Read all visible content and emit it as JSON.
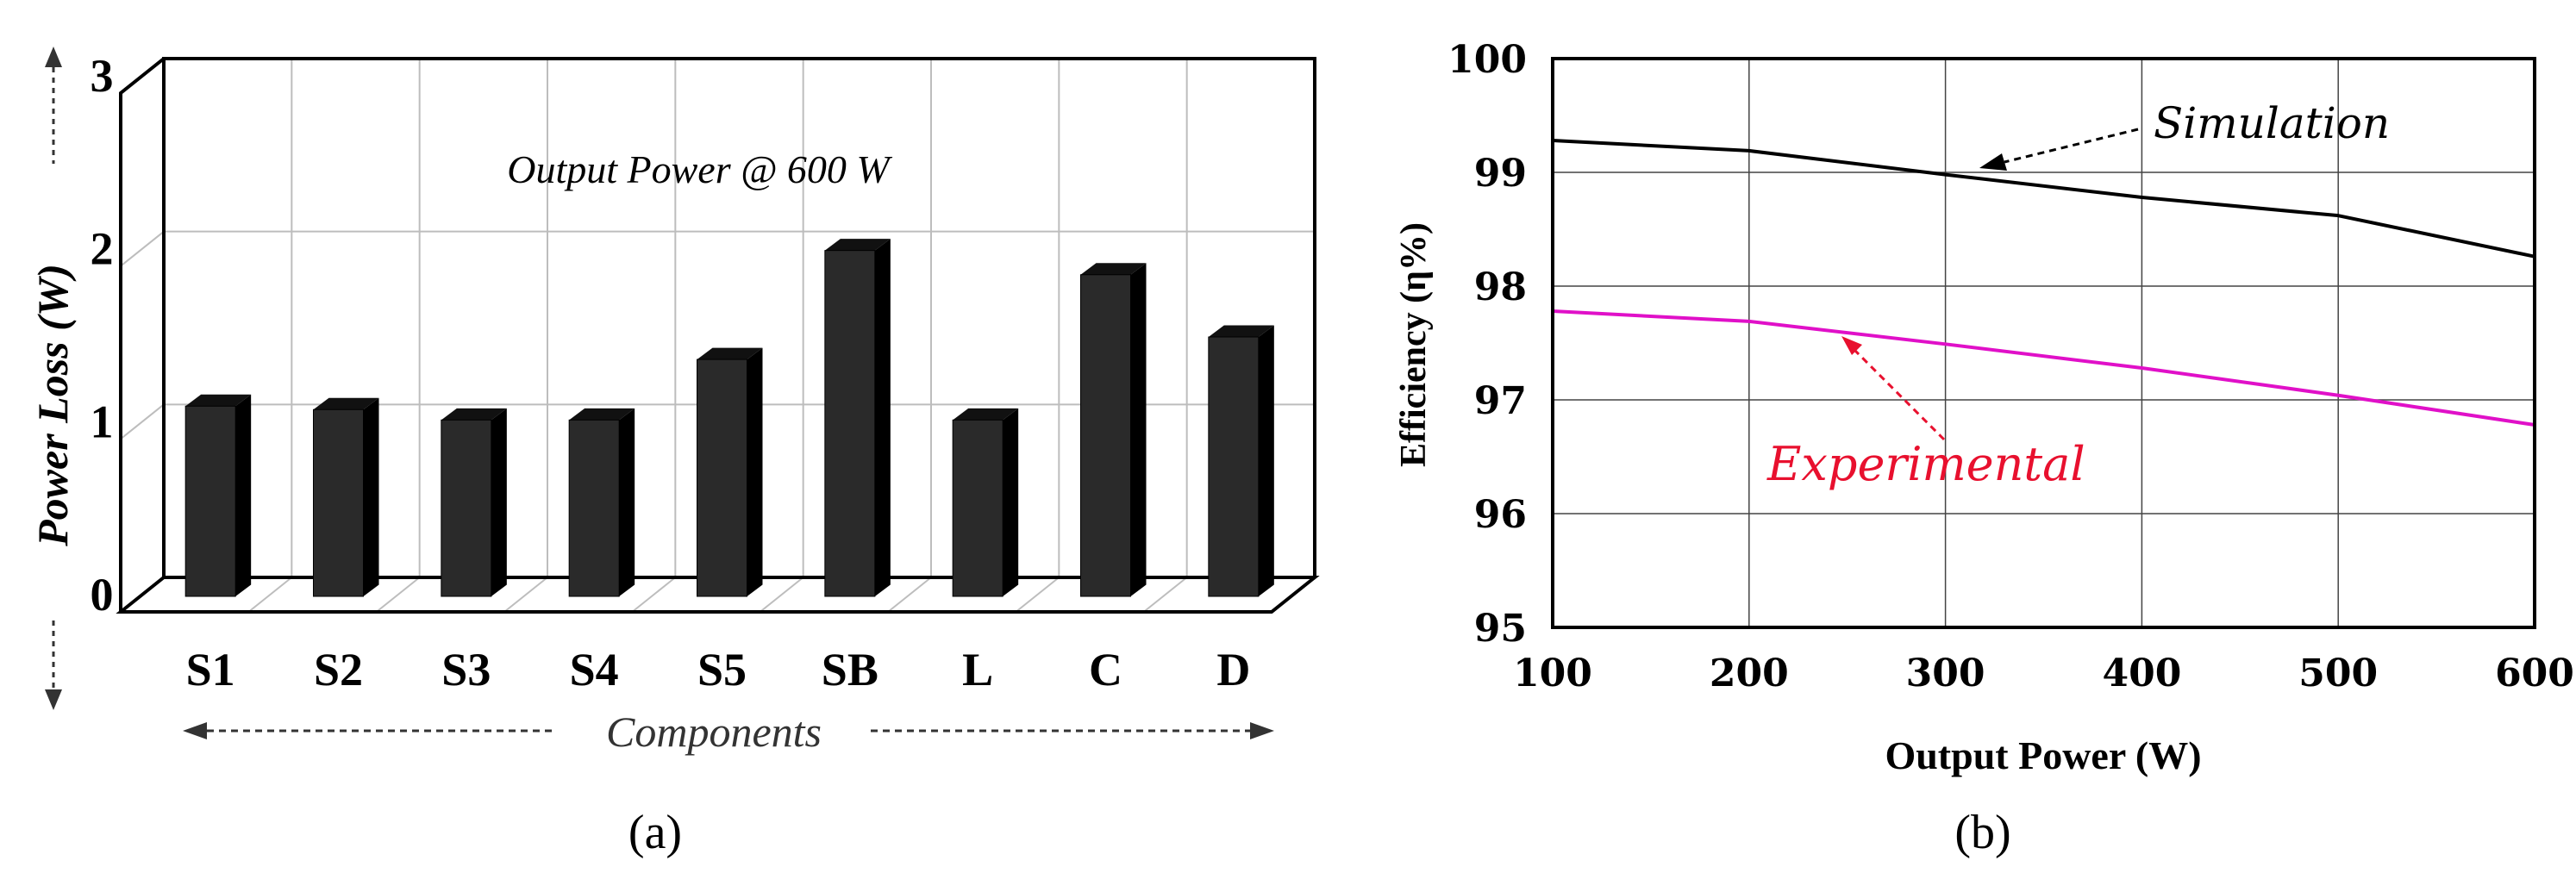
{
  "chart_data": [
    {
      "type": "bar",
      "panel_label": "(a)",
      "annotation": "Output Power @ 600 W",
      "ylabel": "Power Loss (W)",
      "xlabel": "Components",
      "ylim": [
        0,
        3
      ],
      "yticks": [
        "0",
        "1",
        "2",
        "3"
      ],
      "grid": true,
      "categories": [
        "S1",
        "S2",
        "S3",
        "S4",
        "S5",
        "SB",
        "L",
        "C",
        "D"
      ],
      "values": [
        1.1,
        1.08,
        1.02,
        1.02,
        1.37,
        2.0,
        1.02,
        1.86,
        1.5
      ],
      "colors": {
        "bar": "#2a2a2a",
        "bar_side": "#000000",
        "grid": "#bdbdbd",
        "axis": "#000000"
      }
    },
    {
      "type": "line",
      "panel_label": "(b)",
      "xlabel": "Output Power (W)",
      "ylabel": "Efficiency (η%)",
      "xlim": [
        100,
        600
      ],
      "ylim": [
        95,
        100
      ],
      "xticks": [
        "100",
        "200",
        "300",
        "400",
        "500",
        "600"
      ],
      "yticks": [
        "95",
        "96",
        "97",
        "98",
        "99",
        "100"
      ],
      "grid": true,
      "x": [
        100,
        200,
        300,
        400,
        500,
        600
      ],
      "series": [
        {
          "name": "Simulation",
          "values": [
            99.28,
            99.19,
            98.98,
            98.78,
            98.62,
            98.26
          ],
          "color": "#000000"
        },
        {
          "name": "Experimental",
          "values": [
            97.78,
            97.69,
            97.49,
            97.28,
            97.04,
            96.78
          ],
          "color": "#e010c8"
        }
      ],
      "annotation_colors": {
        "Simulation": "#000000",
        "Experimental": "#e8102e"
      }
    }
  ]
}
